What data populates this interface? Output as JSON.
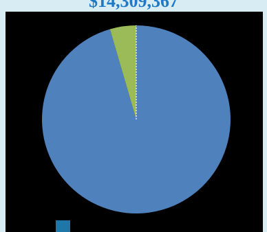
{
  "header": {
    "amount": "$14,309,367"
  },
  "colors": {
    "page_background": "#d7edf3",
    "panel_background": "#000000",
    "headline": "#1f79c7",
    "slice_1": "#4f81bd",
    "slice_2": "#9bbb59",
    "slice_divider": "#ffffff",
    "legend_swatch": "#1f77a8"
  },
  "chart_data": {
    "type": "pie",
    "title": "",
    "start_angle_deg": 0,
    "direction": "clockwise",
    "slices": [
      {
        "value": 95.5,
        "color": "#4f81bd"
      },
      {
        "value": 4.5,
        "color": "#9bbb59"
      }
    ],
    "legend": {
      "placement": "bottom-left",
      "items": [
        {
          "label": "",
          "color": "#1f77a8"
        }
      ]
    }
  }
}
